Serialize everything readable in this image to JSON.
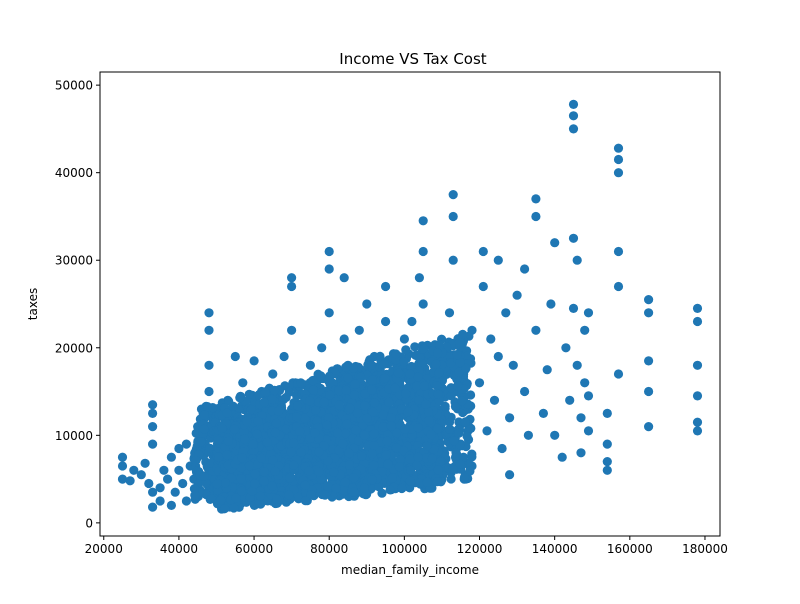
{
  "chart_data": {
    "type": "scatter",
    "title": "Income VS Tax Cost",
    "xlabel": "median_family_income",
    "ylabel": "taxes",
    "xlim": [
      20000,
      180000
    ],
    "ylim": [
      0,
      50000
    ],
    "x_ticks": [
      20000,
      40000,
      60000,
      80000,
      100000,
      120000,
      140000,
      160000,
      180000
    ],
    "y_ticks": [
      0,
      10000,
      20000,
      30000,
      40000,
      50000
    ],
    "grid": false,
    "legend": "none",
    "series": [
      {
        "color": "#1f77b4",
        "points": [
          [
            25000,
            5000
          ],
          [
            25000,
            6500
          ],
          [
            25000,
            7500
          ],
          [
            27000,
            4800
          ],
          [
            28000,
            6000
          ],
          [
            30000,
            5500
          ],
          [
            31000,
            6800
          ],
          [
            32000,
            4500
          ],
          [
            33000,
            1800
          ],
          [
            33000,
            3500
          ],
          [
            33000,
            9000
          ],
          [
            33000,
            11000
          ],
          [
            33000,
            12500
          ],
          [
            33000,
            13500
          ],
          [
            35000,
            2500
          ],
          [
            35000,
            4000
          ],
          [
            36000,
            6000
          ],
          [
            37000,
            5000
          ],
          [
            38000,
            7500
          ],
          [
            38000,
            2000
          ],
          [
            39000,
            3500
          ],
          [
            40000,
            6000
          ],
          [
            40000,
            8500
          ],
          [
            41000,
            4500
          ],
          [
            42000,
            9000
          ],
          [
            42000,
            2500
          ],
          [
            43000,
            6500
          ],
          [
            44000,
            5000
          ],
          [
            45000,
            11000
          ],
          [
            45000,
            7500
          ],
          [
            46000,
            3500
          ],
          [
            46000,
            13000
          ],
          [
            47000,
            9000
          ],
          [
            48000,
            6000
          ],
          [
            48000,
            4000
          ],
          [
            48000,
            15000
          ],
          [
            48000,
            18000
          ],
          [
            48000,
            22000
          ],
          [
            48000,
            24000
          ],
          [
            50000,
            8000
          ],
          [
            50000,
            12000
          ],
          [
            50000,
            3000
          ],
          [
            52000,
            10000
          ],
          [
            52000,
            6500
          ],
          [
            53000,
            14000
          ],
          [
            54000,
            4500
          ],
          [
            55000,
            9000
          ],
          [
            55000,
            12500
          ],
          [
            55000,
            19000
          ],
          [
            56000,
            7000
          ],
          [
            57000,
            16000
          ],
          [
            58000,
            5000
          ],
          [
            58000,
            11000
          ],
          [
            59000,
            8500
          ],
          [
            60000,
            13500
          ],
          [
            60000,
            4000
          ],
          [
            60000,
            18500
          ],
          [
            61000,
            10000
          ],
          [
            62000,
            7000
          ],
          [
            62000,
            15000
          ],
          [
            63000,
            5500
          ],
          [
            64000,
            12000
          ],
          [
            65000,
            9000
          ],
          [
            65000,
            17000
          ],
          [
            65000,
            3000
          ],
          [
            66000,
            14000
          ],
          [
            67000,
            6500
          ],
          [
            68000,
            11000
          ],
          [
            68000,
            19000
          ],
          [
            69000,
            8000
          ],
          [
            70000,
            13000
          ],
          [
            70000,
            22000
          ],
          [
            70000,
            27000
          ],
          [
            70000,
            28000
          ],
          [
            70000,
            5000
          ],
          [
            71000,
            16000
          ],
          [
            72000,
            10000
          ],
          [
            73000,
            7000
          ],
          [
            74000,
            14500
          ],
          [
            75000,
            12000
          ],
          [
            75000,
            18000
          ],
          [
            75000,
            4000
          ],
          [
            76000,
            9000
          ],
          [
            77000,
            15500
          ],
          [
            78000,
            11000
          ],
          [
            78000,
            20000
          ],
          [
            79000,
            6500
          ],
          [
            80000,
            13500
          ],
          [
            80000,
            24000
          ],
          [
            80000,
            29000
          ],
          [
            80000,
            31000
          ],
          [
            80000,
            5500
          ],
          [
            81000,
            17000
          ],
          [
            82000,
            10000
          ],
          [
            83000,
            14000
          ],
          [
            84000,
            8000
          ],
          [
            84000,
            21000
          ],
          [
            84000,
            28000
          ],
          [
            85000,
            12500
          ],
          [
            85000,
            18000
          ],
          [
            86000,
            6000
          ],
          [
            87000,
            15000
          ],
          [
            88000,
            10500
          ],
          [
            88000,
            22000
          ],
          [
            89000,
            13000
          ],
          [
            90000,
            17000
          ],
          [
            90000,
            8000
          ],
          [
            90000,
            25000
          ],
          [
            91000,
            11500
          ],
          [
            92000,
            19000
          ],
          [
            92000,
            5000
          ],
          [
            93000,
            14000
          ],
          [
            94000,
            9500
          ],
          [
            95000,
            16500
          ],
          [
            95000,
            23000
          ],
          [
            95000,
            27000
          ],
          [
            96000,
            12000
          ],
          [
            97000,
            7000
          ],
          [
            98000,
            18000
          ],
          [
            99000,
            10000
          ],
          [
            100000,
            14500
          ],
          [
            100000,
            21000
          ],
          [
            100000,
            5500
          ],
          [
            101000,
            12000
          ],
          [
            102000,
            16000
          ],
          [
            102000,
            23000
          ],
          [
            103000,
            8500
          ],
          [
            104000,
            19000
          ],
          [
            104000,
            28000
          ],
          [
            105000,
            11000
          ],
          [
            105000,
            25000
          ],
          [
            105000,
            31000
          ],
          [
            105000,
            34500
          ],
          [
            106000,
            15000
          ],
          [
            106000,
            4000
          ],
          [
            107000,
            9000
          ],
          [
            108000,
            13000
          ],
          [
            109000,
            17500
          ],
          [
            110000,
            20000
          ],
          [
            110000,
            7000
          ],
          [
            112000,
            11500
          ],
          [
            112000,
            24000
          ],
          [
            113000,
            30000
          ],
          [
            113000,
            35000
          ],
          [
            113000,
            37500
          ],
          [
            114000,
            15000
          ],
          [
            115000,
            9000
          ],
          [
            116000,
            19500
          ],
          [
            117000,
            13000
          ],
          [
            118000,
            22000
          ],
          [
            118000,
            6500
          ],
          [
            120000,
            16000
          ],
          [
            121000,
            27000
          ],
          [
            121000,
            31000
          ],
          [
            122000,
            10500
          ],
          [
            123000,
            21000
          ],
          [
            124000,
            14000
          ],
          [
            125000,
            19000
          ],
          [
            125000,
            30000
          ],
          [
            126000,
            8500
          ],
          [
            127000,
            24000
          ],
          [
            128000,
            12000
          ],
          [
            128000,
            5500
          ],
          [
            129000,
            18000
          ],
          [
            130000,
            26000
          ],
          [
            132000,
            15000
          ],
          [
            132000,
            29000
          ],
          [
            133000,
            10000
          ],
          [
            135000,
            22000
          ],
          [
            135000,
            35000
          ],
          [
            135000,
            37000
          ],
          [
            137000,
            12500
          ],
          [
            138000,
            17500
          ],
          [
            139000,
            25000
          ],
          [
            140000,
            32000
          ],
          [
            140000,
            10000
          ],
          [
            142000,
            7500
          ],
          [
            143000,
            20000
          ],
          [
            144000,
            14000
          ],
          [
            145000,
            24500
          ],
          [
            145000,
            32500
          ],
          [
            145000,
            45000
          ],
          [
            145000,
            46500
          ],
          [
            145000,
            47800
          ],
          [
            146000,
            18000
          ],
          [
            146000,
            30000
          ],
          [
            147000,
            12000
          ],
          [
            147000,
            8000
          ],
          [
            148000,
            22000
          ],
          [
            148000,
            16000
          ],
          [
            149000,
            24000
          ],
          [
            149000,
            14500
          ],
          [
            149000,
            10500
          ],
          [
            154000,
            12500
          ],
          [
            154000,
            9000
          ],
          [
            154000,
            7000
          ],
          [
            154000,
            6000
          ],
          [
            157000,
            17000
          ],
          [
            157000,
            27000
          ],
          [
            157000,
            31000
          ],
          [
            157000,
            40000
          ],
          [
            157000,
            41500
          ],
          [
            157000,
            42800
          ],
          [
            165000,
            11000
          ],
          [
            165000,
            15000
          ],
          [
            165000,
            18500
          ],
          [
            165000,
            24000
          ],
          [
            165000,
            25500
          ],
          [
            178000,
            10500
          ],
          [
            178000,
            11500
          ],
          [
            178000,
            14500
          ],
          [
            178000,
            18000
          ],
          [
            178000,
            23000
          ],
          [
            178000,
            24500
          ]
        ],
        "dense_regions": [
          {
            "x_range": [
              44000,
              118000
            ],
            "y_range_at_x_start": [
              2500,
              13000
            ],
            "y_range_at_x_end": [
              5000,
              22000
            ]
          },
          {
            "x_range": [
              50000,
              110000
            ],
            "y_range_at_x_start": [
              1500,
              11000
            ],
            "y_range_at_x_end": [
              4000,
              19000
            ]
          }
        ]
      }
    ]
  }
}
